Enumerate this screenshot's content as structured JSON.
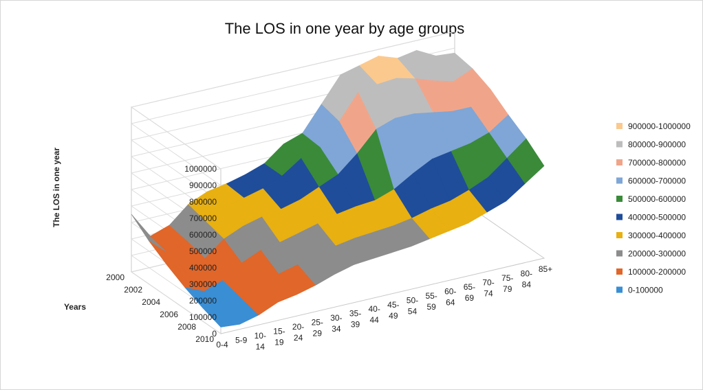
{
  "chart_data": {
    "type": "surface",
    "title": "The LOS in one year by age groups",
    "xlabel": "",
    "ylabel": "Years",
    "zlabel": "The LOS in one year",
    "age_groups": [
      "0-4",
      "5-9",
      "10-14",
      "15-19",
      "20-24",
      "25-29",
      "30-34",
      "35-39",
      "40-44",
      "45-49",
      "50-54",
      "55-59",
      "60-64",
      "65-69",
      "70-74",
      "75-79",
      "80-84",
      "85+"
    ],
    "age_group_tick_lines": [
      [
        "0-4"
      ],
      [
        "5-9"
      ],
      [
        "10-",
        "14"
      ],
      [
        "15-",
        "19"
      ],
      [
        "20-",
        "24"
      ],
      [
        "25-",
        "29"
      ],
      [
        "30-",
        "34"
      ],
      [
        "35-",
        "39"
      ],
      [
        "40-",
        "44"
      ],
      [
        "45-",
        "49"
      ],
      [
        "50-",
        "54"
      ],
      [
        "55-",
        "59"
      ],
      [
        "60-",
        "64"
      ],
      [
        "65-",
        "69"
      ],
      [
        "70-",
        "74"
      ],
      [
        "75-",
        "79"
      ],
      [
        "80-",
        "84"
      ],
      [
        "85+"
      ]
    ],
    "years": [
      "2000",
      "2002",
      "2004",
      "2006",
      "2008",
      "2010"
    ],
    "zlim": [
      0,
      1000000
    ],
    "z_ticks": [
      "0",
      "100000",
      "200000",
      "300000",
      "400000",
      "500000",
      "600000",
      "700000",
      "800000",
      "900000",
      "1000000"
    ],
    "series": [
      {
        "name": "2000",
        "values": [
          350000,
          190000,
          230000,
          330000,
          380000,
          400000,
          430000,
          470000,
          560000,
          600000,
          750000,
          900000,
          930000,
          960000,
          920000,
          940000,
          880000,
          870000
        ]
      },
      {
        "name": "2002",
        "values": [
          260000,
          160000,
          210000,
          300000,
          360000,
          390000,
          420000,
          470000,
          550000,
          590000,
          720000,
          870000,
          890000,
          900000,
          870000,
          830000,
          800000,
          850000
        ]
      },
      {
        "name": "2004",
        "values": [
          190000,
          120000,
          180000,
          270000,
          320000,
          350000,
          370000,
          400000,
          450000,
          500000,
          600000,
          720000,
          760000,
          760000,
          740000,
          720000,
          720000,
          800000
        ]
      },
      {
        "name": "2006",
        "values": [
          130000,
          80000,
          120000,
          200000,
          250000,
          270000,
          300000,
          330000,
          360000,
          380000,
          390000,
          430000,
          500000,
          560000,
          580000,
          600000,
          640000,
          720000
        ]
      },
      {
        "name": "2008",
        "values": [
          80000,
          50000,
          90000,
          150000,
          180000,
          210000,
          240000,
          270000,
          290000,
          300000,
          310000,
          330000,
          360000,
          380000,
          420000,
          470000,
          560000,
          650000
        ]
      },
      {
        "name": "2010",
        "values": [
          40000,
          30000,
          60000,
          110000,
          130000,
          160000,
          200000,
          230000,
          240000,
          250000,
          260000,
          280000,
          300000,
          320000,
          360000,
          400000,
          480000,
          560000
        ]
      }
    ],
    "legend": [
      {
        "label": "900000-1000000",
        "color": "#fbc98e"
      },
      {
        "label": "800000-900000",
        "color": "#bdbdbd"
      },
      {
        "label": "700000-800000",
        "color": "#f0a58a"
      },
      {
        "label": "600000-700000",
        "color": "#7fa6d6"
      },
      {
        "label": "500000-600000",
        "color": "#3a8a3a"
      },
      {
        "label": "400000-500000",
        "color": "#1f4d9a"
      },
      {
        "label": "300000-400000",
        "color": "#e8b010"
      },
      {
        "label": "200000-300000",
        "color": "#8c8c8c"
      },
      {
        "label": "100000-200000",
        "color": "#e0662a"
      },
      {
        "label": "0-100000",
        "color": "#3a8ed4"
      }
    ],
    "band_colors": [
      "#3a8ed4",
      "#e0662a",
      "#8c8c8c",
      "#e8b010",
      "#1f4d9a",
      "#3a8a3a",
      "#7fa6d6",
      "#f0a58a",
      "#bdbdbd",
      "#fbc98e"
    ],
    "legend_position": "right",
    "grid": true
  }
}
